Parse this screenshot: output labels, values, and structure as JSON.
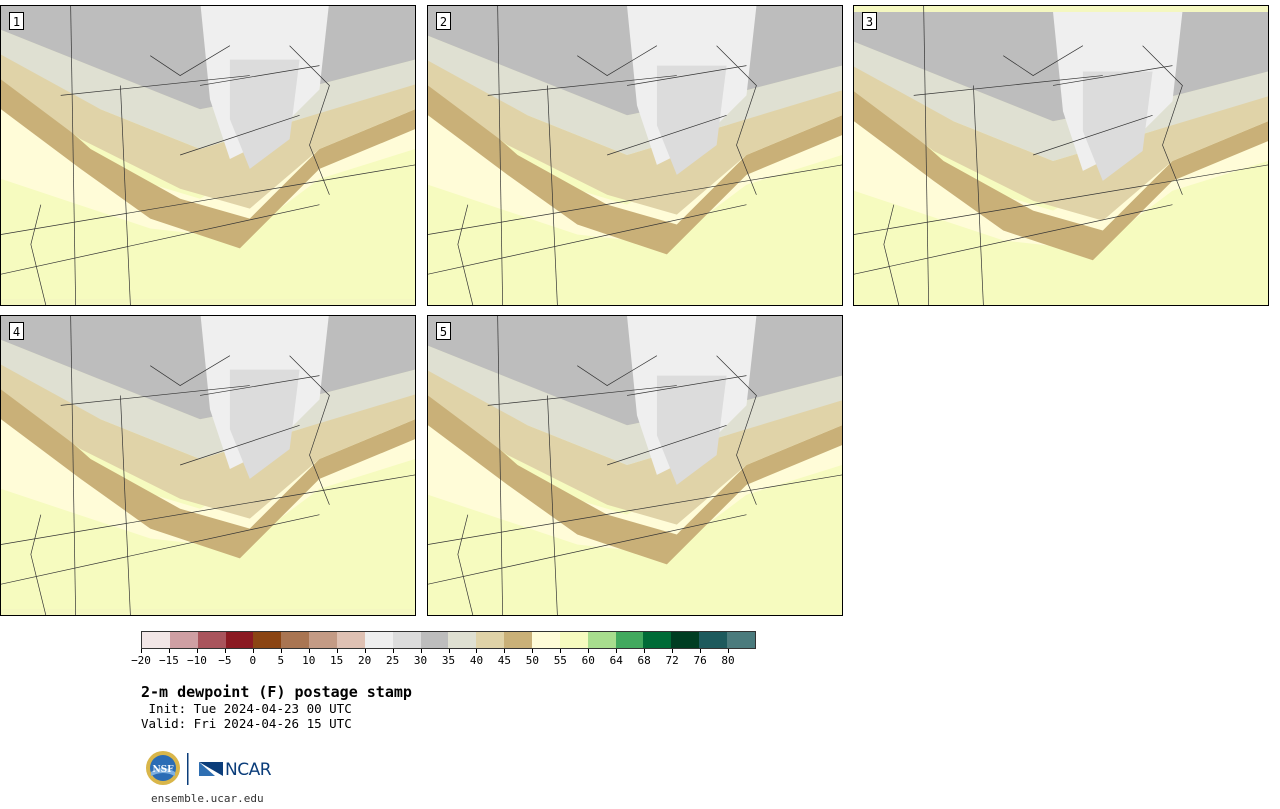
{
  "panels": [
    {
      "label": "1"
    },
    {
      "label": "2"
    },
    {
      "label": "3"
    },
    {
      "label": "4"
    },
    {
      "label": "5"
    }
  ],
  "colorbar": {
    "colors": [
      "#f2e6e6",
      "#cf9fa3",
      "#a9545c",
      "#8b1a22",
      "#8b4513",
      "#a97552",
      "#c49b85",
      "#dfc1b3",
      "#efefef",
      "#dcdcdc",
      "#bdbdbd",
      "#dfe0d2",
      "#e0d3a8",
      "#c9b078",
      "#fffcd8",
      "#f6fbbf",
      "#a8dd8e",
      "#42a95e",
      "#006b37",
      "#003d22",
      "#1d5a5d",
      "#4b7b7d"
    ],
    "ticks": [
      "−20",
      "−15",
      "−10",
      "−5",
      "0",
      "5",
      "10",
      "15",
      "20",
      "25",
      "30",
      "35",
      "40",
      "45",
      "50",
      "55",
      "60",
      "64",
      "68",
      "72",
      "76",
      "80"
    ]
  },
  "title": "2-m dewpoint (F) postage stamp",
  "init": " Init: Tue 2024-04-23 00 UTC",
  "valid": "Valid: Fri 2024-04-26 15 UTC",
  "logos": {
    "nsf": "NSF",
    "ncar": "NCAR"
  },
  "url": "ensemble.ucar.edu"
}
